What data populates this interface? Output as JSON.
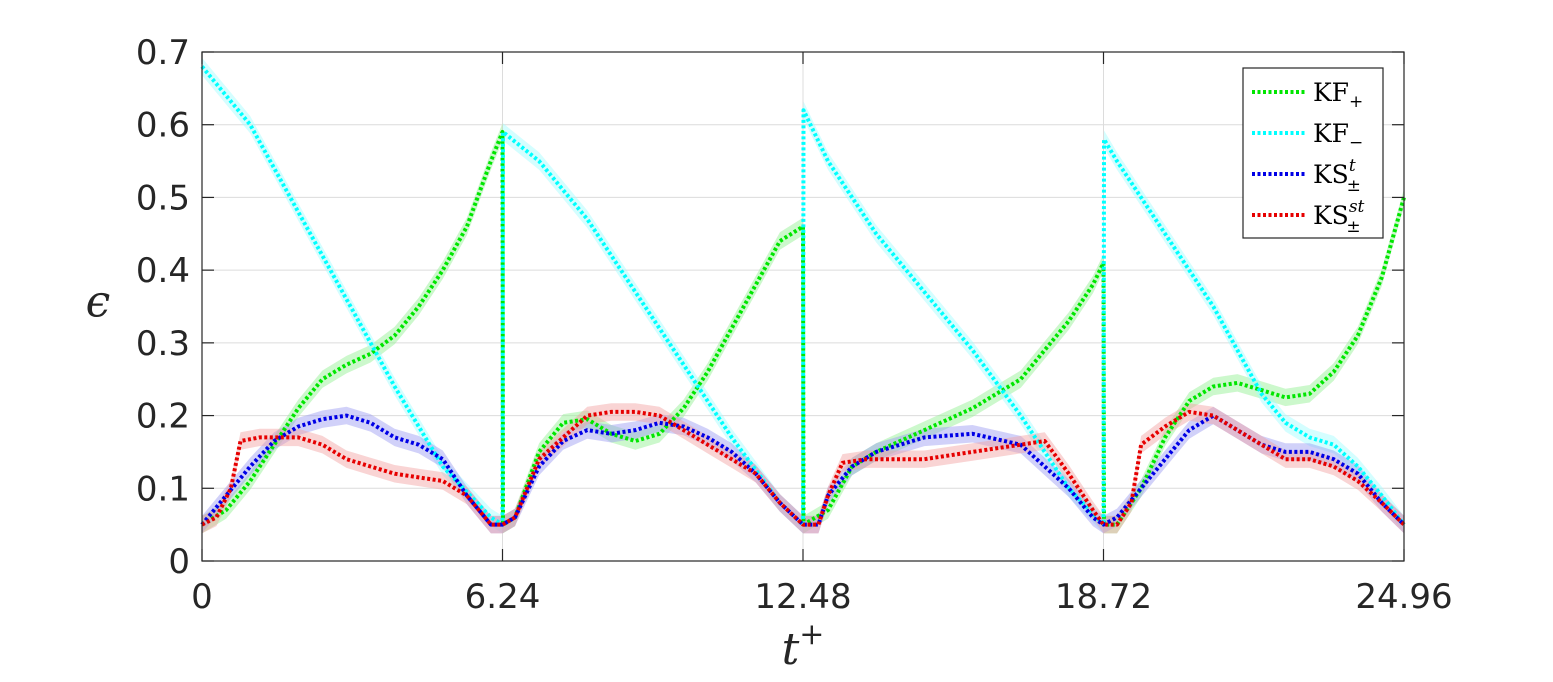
{
  "chart_data": {
    "type": "line",
    "xlabel": "t",
    "xlabel_sup": "+",
    "ylabel": "ϵ",
    "xlim": [
      0,
      24.96
    ],
    "ylim": [
      0,
      0.7
    ],
    "xticks": [
      0,
      6.24,
      12.48,
      18.72,
      24.96
    ],
    "xtick_labels": [
      "0",
      "6.24",
      "12.48",
      "18.72",
      "24.96"
    ],
    "yticks": [
      0,
      0.1,
      0.2,
      0.3,
      0.4,
      0.5,
      0.6,
      0.7
    ],
    "ytick_labels": [
      "0",
      "0.1",
      "0.2",
      "0.3",
      "0.4",
      "0.5",
      "0.6",
      "0.7"
    ],
    "grid": true,
    "legend_position": "top-right",
    "series": [
      {
        "name": "KF",
        "name_sub": "+",
        "name_sup": "",
        "color": "#00e600",
        "band_color": "#8ef08e",
        "x": [
          0,
          0.5,
          1.0,
          1.5,
          2.0,
          2.5,
          3.0,
          3.5,
          4.0,
          4.5,
          5.0,
          5.5,
          6.0,
          6.24,
          6.25,
          6.5,
          7.0,
          7.5,
          8.0,
          8.5,
          9.0,
          9.5,
          10.0,
          10.5,
          11.0,
          11.5,
          12.0,
          12.48,
          12.49,
          13.0,
          13.5,
          14.0,
          15.0,
          16.0,
          17.0,
          17.5,
          18.0,
          18.5,
          18.72,
          18.73,
          19.0,
          19.5,
          20.0,
          20.5,
          21.0,
          21.5,
          22.0,
          22.5,
          23.0,
          23.5,
          24.0,
          24.5,
          24.96
        ],
        "y": [
          0.05,
          0.07,
          0.11,
          0.16,
          0.21,
          0.25,
          0.27,
          0.285,
          0.31,
          0.35,
          0.4,
          0.46,
          0.55,
          0.59,
          0.05,
          0.06,
          0.15,
          0.19,
          0.195,
          0.175,
          0.165,
          0.175,
          0.21,
          0.26,
          0.32,
          0.38,
          0.44,
          0.46,
          0.05,
          0.07,
          0.13,
          0.15,
          0.18,
          0.21,
          0.25,
          0.29,
          0.33,
          0.38,
          0.41,
          0.05,
          0.05,
          0.1,
          0.17,
          0.22,
          0.24,
          0.245,
          0.235,
          0.225,
          0.23,
          0.26,
          0.31,
          0.39,
          0.5
        ]
      },
      {
        "name": "KF",
        "name_sub": "−",
        "name_sup": "",
        "color": "#00ffff",
        "band_color": "#9ffcff",
        "x": [
          0,
          1.0,
          2.0,
          3.0,
          4.0,
          5.0,
          6.0,
          6.24,
          6.25,
          7.0,
          8.0,
          9.0,
          10.0,
          11.0,
          12.0,
          12.48,
          12.49,
          13.0,
          14.0,
          15.0,
          16.0,
          17.0,
          18.0,
          18.72,
          18.73,
          19.0,
          20.0,
          21.0,
          22.0,
          22.5,
          23.0,
          23.5,
          24.0,
          24.5,
          24.96
        ],
        "y": [
          0.68,
          0.6,
          0.48,
          0.36,
          0.24,
          0.13,
          0.06,
          0.05,
          0.59,
          0.55,
          0.47,
          0.37,
          0.27,
          0.17,
          0.08,
          0.05,
          0.62,
          0.55,
          0.45,
          0.37,
          0.29,
          0.2,
          0.1,
          0.05,
          0.58,
          0.55,
          0.45,
          0.35,
          0.23,
          0.19,
          0.17,
          0.16,
          0.13,
          0.09,
          0.05
        ]
      },
      {
        "name": "KS",
        "name_sub": "±",
        "name_sup": "t",
        "color": "#0000e6",
        "band_color": "#9a9af2",
        "x": [
          0,
          0.5,
          1.0,
          1.5,
          2.0,
          2.5,
          3.0,
          3.5,
          4.0,
          4.5,
          5.0,
          5.5,
          6.0,
          6.24,
          6.5,
          7.0,
          7.5,
          8.0,
          8.5,
          9.0,
          9.5,
          10.0,
          10.5,
          11.0,
          11.5,
          12.0,
          12.48,
          12.8,
          13.0,
          13.5,
          14.0,
          15.0,
          16.0,
          17.0,
          17.5,
          18.0,
          18.5,
          18.72,
          19.0,
          19.5,
          20.0,
          20.5,
          21.0,
          21.5,
          22.0,
          22.5,
          23.0,
          23.5,
          24.0,
          24.5,
          24.96
        ],
        "y": [
          0.05,
          0.09,
          0.13,
          0.165,
          0.185,
          0.195,
          0.2,
          0.19,
          0.17,
          0.16,
          0.14,
          0.09,
          0.05,
          0.05,
          0.06,
          0.13,
          0.165,
          0.18,
          0.175,
          0.18,
          0.19,
          0.185,
          0.17,
          0.15,
          0.12,
          0.08,
          0.05,
          0.05,
          0.09,
          0.13,
          0.15,
          0.17,
          0.175,
          0.16,
          0.13,
          0.1,
          0.06,
          0.05,
          0.06,
          0.1,
          0.14,
          0.18,
          0.2,
          0.18,
          0.16,
          0.15,
          0.15,
          0.14,
          0.12,
          0.08,
          0.05
        ]
      },
      {
        "name": "KS",
        "name_sub": "±",
        "name_sup": "st",
        "color": "#e60000",
        "band_color": "#f2a0a0",
        "x": [
          0,
          0.3,
          0.6,
          0.8,
          1.2,
          1.5,
          2.0,
          2.5,
          3.0,
          3.5,
          4.0,
          4.5,
          5.0,
          5.5,
          6.0,
          6.24,
          6.5,
          7.0,
          7.5,
          8.0,
          8.5,
          9.0,
          9.5,
          10.0,
          10.5,
          11.0,
          11.5,
          12.0,
          12.48,
          12.8,
          13.0,
          13.3,
          13.8,
          14.5,
          15.0,
          16.0,
          17.0,
          17.5,
          18.0,
          18.5,
          18.72,
          19.0,
          19.3,
          19.5,
          20.0,
          20.5,
          21.0,
          21.5,
          22.0,
          22.5,
          23.0,
          23.5,
          24.0,
          24.5,
          24.96
        ],
        "y": [
          0.05,
          0.06,
          0.1,
          0.165,
          0.17,
          0.17,
          0.17,
          0.16,
          0.14,
          0.13,
          0.12,
          0.115,
          0.11,
          0.09,
          0.05,
          0.05,
          0.06,
          0.14,
          0.17,
          0.2,
          0.205,
          0.205,
          0.2,
          0.18,
          0.16,
          0.14,
          0.12,
          0.08,
          0.05,
          0.05,
          0.09,
          0.135,
          0.14,
          0.14,
          0.14,
          0.15,
          0.16,
          0.165,
          0.12,
          0.07,
          0.05,
          0.05,
          0.08,
          0.16,
          0.185,
          0.205,
          0.2,
          0.18,
          0.16,
          0.14,
          0.14,
          0.13,
          0.11,
          0.08,
          0.05
        ]
      }
    ]
  }
}
